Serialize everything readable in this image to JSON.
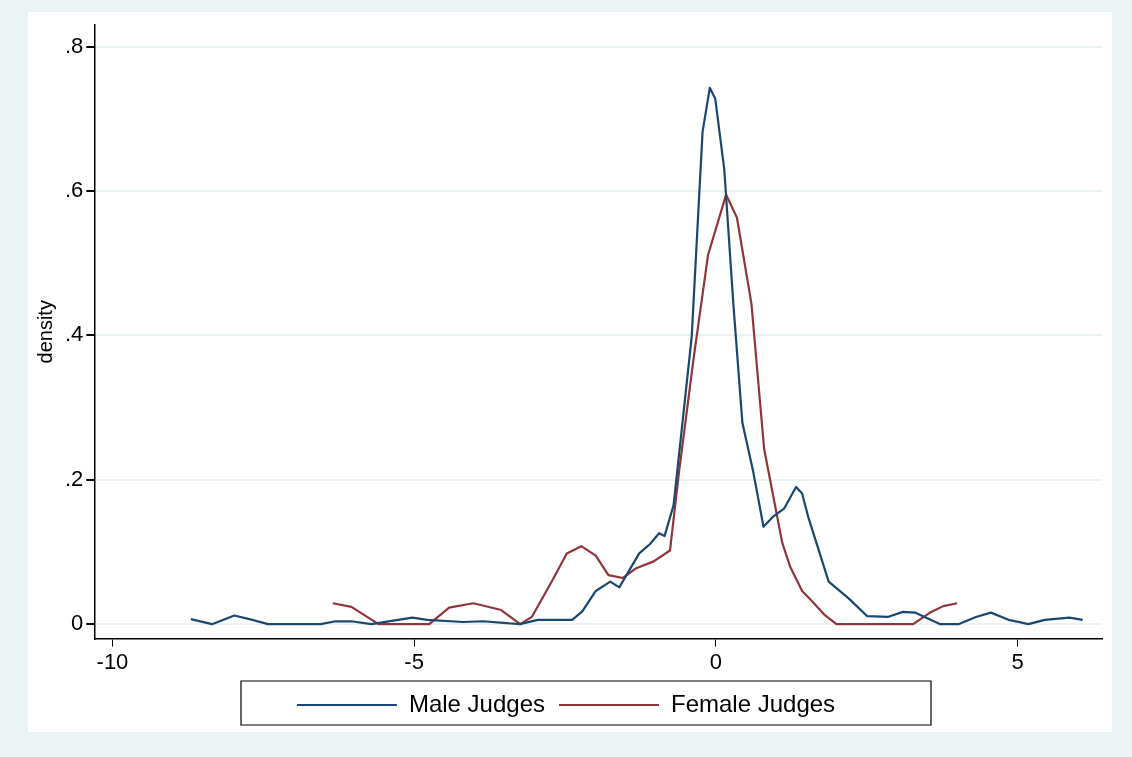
{
  "chart_data": {
    "type": "line",
    "ylabel": "density",
    "xlim": [
      -10.3,
      6.4
    ],
    "ylim": [
      -0.02,
      0.83
    ],
    "xticks": [
      -10,
      -5,
      0,
      5
    ],
    "yticks": [
      0,
      {
        "value": 0.2,
        "label": ".2"
      },
      {
        "value": 0.4,
        "label": ".4"
      },
      {
        "value": 0.6,
        "label": ".6"
      },
      {
        "value": 0.8,
        "label": ".8"
      }
    ],
    "grid": "y",
    "legend": "bottom",
    "marker": "none",
    "line_style": "solid",
    "series": [
      {
        "name": "Male Judges",
        "color": "#1a476f",
        "x": [
          -8.7,
          -8.35,
          -7.98,
          -7.73,
          -7.42,
          -6.55,
          -6.3,
          -6.04,
          -5.71,
          -5.03,
          -4.78,
          -4.19,
          -3.86,
          -3.25,
          -2.95,
          -2.38,
          -2.21,
          -1.99,
          -1.75,
          -1.6,
          -1.27,
          -1.09,
          -0.94,
          -0.85,
          -0.7,
          -0.4,
          -0.22,
          -0.1,
          -0.01,
          0.14,
          0.29,
          0.44,
          0.62,
          0.79,
          0.95,
          1.13,
          1.33,
          1.43,
          1.53,
          1.87,
          2.21,
          2.51,
          2.85,
          3.1,
          3.3,
          3.72,
          4.02,
          4.31,
          4.56,
          4.85,
          5.18,
          5.45,
          5.86,
          6.08
        ],
        "values": [
          0.007,
          0,
          0.012,
          0.007,
          0,
          0,
          0.004,
          0.004,
          0,
          0.009,
          0.006,
          0.003,
          0.004,
          0,
          0.006,
          0.006,
          0.018,
          0.046,
          0.059,
          0.051,
          0.098,
          0.111,
          0.126,
          0.122,
          0.165,
          0.398,
          0.682,
          0.743,
          0.728,
          0.63,
          0.444,
          0.279,
          0.211,
          0.135,
          0.149,
          0.16,
          0.19,
          0.181,
          0.149,
          0.059,
          0.035,
          0.011,
          0.01,
          0.017,
          0.016,
          0,
          0,
          0.01,
          0.016,
          0.006,
          0,
          0.006,
          0.009,
          0.006
        ]
      },
      {
        "name": "Female Judges",
        "color": "#90353b",
        "x": [
          -6.35,
          -6.04,
          -5.59,
          -4.75,
          -4.42,
          -4.02,
          -3.57,
          -3.24,
          -3.05,
          -2.74,
          -2.47,
          -2.23,
          -1.99,
          -1.78,
          -1.54,
          -1.33,
          -1.03,
          -0.76,
          -0.61,
          -0.37,
          -0.13,
          0.17,
          0.35,
          0.59,
          0.8,
          1.1,
          1.23,
          1.43,
          1.58,
          1.8,
          2.0,
          3.27,
          3.55,
          3.77,
          4.0
        ],
        "values": [
          0.029,
          0.024,
          0,
          0,
          0.023,
          0.029,
          0.02,
          0,
          0.01,
          0.056,
          0.098,
          0.108,
          0.095,
          0.068,
          0.064,
          0.077,
          0.087,
          0.102,
          0.211,
          0.367,
          0.511,
          0.595,
          0.563,
          0.444,
          0.243,
          0.113,
          0.08,
          0.046,
          0.033,
          0.013,
          0,
          0,
          0.016,
          0.025,
          0.029
        ]
      }
    ]
  }
}
